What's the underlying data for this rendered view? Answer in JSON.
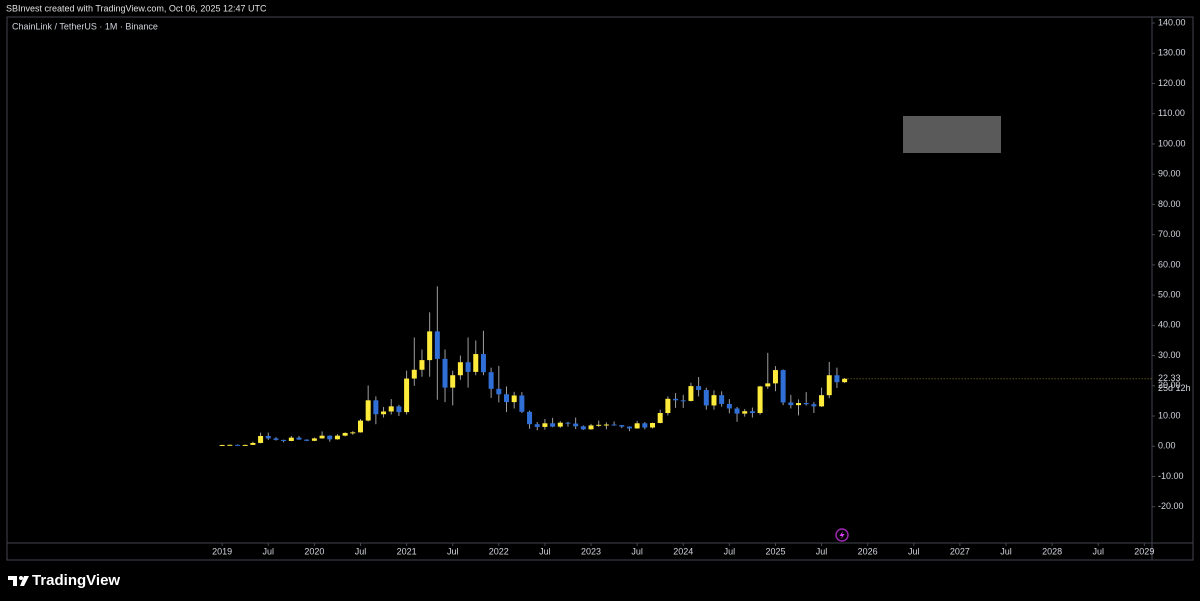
{
  "header": "SBInvest created with TradingView.com, Oct 06, 2025 12:47 UTC",
  "footer": "TradingView",
  "chart_data": {
    "type": "candlestick",
    "title": "ChainLink / TetherUS · 1M · Binance",
    "x": [
      "2019-01",
      "2019-02",
      "2019-03",
      "2019-04",
      "2019-05",
      "2019-06",
      "2019-07",
      "2019-08",
      "2019-09",
      "2019-10",
      "2019-11",
      "2019-12",
      "2020-01",
      "2020-02",
      "2020-03",
      "2020-04",
      "2020-05",
      "2020-06",
      "2020-07",
      "2020-08",
      "2020-09",
      "2020-10",
      "2020-11",
      "2020-12",
      "2021-01",
      "2021-02",
      "2021-03",
      "2021-04",
      "2021-05",
      "2021-06",
      "2021-07",
      "2021-08",
      "2021-09",
      "2021-10",
      "2021-11",
      "2021-12",
      "2022-01",
      "2022-02",
      "2022-03",
      "2022-04",
      "2022-05",
      "2022-06",
      "2022-07",
      "2022-08",
      "2022-09",
      "2022-10",
      "2022-11",
      "2022-12",
      "2023-01",
      "2023-02",
      "2023-03",
      "2023-04",
      "2023-05",
      "2023-06",
      "2023-07",
      "2023-08",
      "2023-09",
      "2023-10",
      "2023-11",
      "2023-12",
      "2024-01",
      "2024-02",
      "2024-03",
      "2024-04",
      "2024-05",
      "2024-06",
      "2024-07",
      "2024-08",
      "2024-09",
      "2024-10",
      "2024-11",
      "2024-12",
      "2025-01",
      "2025-02",
      "2025-03",
      "2025-04",
      "2025-05",
      "2025-06",
      "2025-07",
      "2025-08",
      "2025-09",
      "2025-10"
    ],
    "open": [
      0.3,
      0.43,
      0.48,
      0.45,
      0.45,
      1.1,
      3.4,
      2.6,
      2.1,
      1.75,
      2.85,
      2.2,
      1.8,
      2.6,
      3.5,
      2.3,
      3.5,
      4.4,
      4.6,
      8.5,
      15.2,
      10.6,
      11.5,
      13.2,
      11.3,
      22.4,
      25.3,
      28.5,
      38.0,
      28.9,
      19.4,
      23.5,
      27.8,
      24.6,
      30.5,
      24.5,
      19.0,
      17.2,
      14.6,
      16.8,
      11.4,
      7.3,
      6.4,
      7.6,
      6.5,
      7.8,
      7.5,
      6.6,
      5.6,
      6.9,
      7.1,
      7.2,
      7.0,
      6.5,
      5.9,
      7.6,
      6.2,
      7.7,
      11.0,
      15.7,
      15.2,
      15.0,
      19.9,
      18.6,
      13.5,
      16.9,
      14.0,
      12.5,
      10.8,
      11.6,
      11.0,
      19.8,
      20.8,
      25.2,
      14.5,
      13.6,
      14.3,
      13.9,
      13.2,
      16.9,
      23.5,
      21.2
    ],
    "high": [
      0.5,
      0.55,
      0.6,
      0.55,
      1.5,
      4.5,
      4.5,
      3.0,
      2.2,
      3.4,
      3.4,
      2.3,
      2.9,
      4.9,
      3.6,
      4.0,
      4.6,
      5.0,
      9.0,
      20.1,
      16.5,
      13.0,
      15.6,
      13.7,
      25.0,
      36.0,
      32.0,
      44.3,
      52.9,
      32.0,
      25.0,
      30.0,
      36.0,
      35.0,
      38.2,
      26.0,
      26.6,
      19.8,
      18.0,
      17.9,
      11.8,
      8.0,
      9.0,
      9.4,
      8.3,
      8.1,
      9.5,
      6.9,
      7.4,
      8.5,
      7.9,
      8.2,
      7.0,
      6.6,
      8.4,
      8.0,
      7.8,
      12.1,
      16.5,
      17.6,
      17.0,
      21.0,
      22.9,
      19.4,
      18.5,
      18.2,
      15.6,
      13.0,
      12.3,
      12.8,
      20.0,
      30.9,
      26.5,
      25.4,
      17.0,
      15.5,
      17.9,
      14.6,
      19.4,
      27.9,
      26.0,
      22.6
    ],
    "low": [
      0.28,
      0.4,
      0.42,
      0.38,
      0.42,
      1.0,
      2.1,
      1.9,
      1.3,
      1.7,
      2.1,
      1.7,
      1.7,
      2.5,
      1.5,
      2.2,
      3.3,
      3.8,
      4.5,
      8.2,
      7.3,
      9.5,
      10.5,
      10.0,
      10.5,
      20.0,
      23.0,
      23.0,
      15.4,
      14.6,
      13.5,
      22.0,
      19.4,
      23.5,
      23.5,
      16.0,
      14.5,
      11.3,
      12.5,
      11.0,
      5.8,
      5.3,
      5.5,
      6.3,
      6.1,
      6.5,
      5.7,
      5.4,
      5.5,
      6.4,
      5.6,
      6.8,
      6.0,
      5.0,
      5.8,
      5.6,
      5.9,
      7.6,
      10.2,
      12.7,
      12.7,
      14.8,
      16.5,
      12.1,
      12.1,
      13.1,
      10.9,
      8.1,
      9.8,
      9.5,
      10.5,
      19.0,
      18.2,
      13.6,
      12.5,
      10.2,
      13.5,
      11.0,
      13.0,
      15.9,
      19.3,
      20.9
    ],
    "close": [
      0.43,
      0.48,
      0.45,
      0.45,
      1.1,
      3.4,
      2.6,
      2.1,
      1.75,
      2.85,
      2.2,
      1.8,
      2.6,
      3.5,
      2.3,
      3.5,
      4.4,
      4.6,
      8.5,
      15.2,
      10.6,
      11.5,
      13.2,
      11.3,
      22.4,
      25.3,
      28.5,
      38.0,
      28.9,
      19.4,
      23.5,
      27.8,
      24.6,
      30.5,
      24.5,
      19.0,
      17.2,
      14.6,
      16.8,
      11.4,
      7.3,
      6.4,
      7.6,
      6.5,
      7.8,
      7.5,
      6.6,
      5.6,
      6.9,
      7.1,
      7.2,
      7.0,
      6.5,
      5.9,
      7.6,
      6.2,
      7.7,
      11.0,
      15.7,
      15.2,
      15.0,
      19.9,
      18.6,
      13.5,
      16.9,
      14.0,
      12.5,
      10.8,
      11.6,
      11.0,
      19.8,
      20.8,
      25.2,
      14.5,
      13.6,
      14.3,
      13.9,
      13.2,
      16.9,
      23.5,
      21.2,
      22.33
    ],
    "up_color": "#ffeb3b",
    "down_color": "#2f6fd6",
    "wick_color": "#9e9e9e",
    "countdown": "25d 12h",
    "xlim": [
      "2016-09",
      "2029-02"
    ],
    "xticks": [
      {
        "value": "2019-01",
        "label": "2019"
      },
      {
        "value": "2019-07",
        "label": "Jul"
      },
      {
        "value": "2020-01",
        "label": "2020"
      },
      {
        "value": "2020-07",
        "label": "Jul"
      },
      {
        "value": "2021-01",
        "label": "2021"
      },
      {
        "value": "2021-07",
        "label": "Jul"
      },
      {
        "value": "2022-01",
        "label": "2022"
      },
      {
        "value": "2022-07",
        "label": "Jul"
      },
      {
        "value": "2023-01",
        "label": "2023"
      },
      {
        "value": "2023-07",
        "label": "Jul"
      },
      {
        "value": "2024-01",
        "label": "2024"
      },
      {
        "value": "2024-07",
        "label": "Jul"
      },
      {
        "value": "2025-01",
        "label": "2025"
      },
      {
        "value": "2025-07",
        "label": "Jul"
      },
      {
        "value": "2026-01",
        "label": "2026"
      },
      {
        "value": "2026-07",
        "label": "Jul"
      },
      {
        "value": "2027-01",
        "label": "2027"
      },
      {
        "value": "2027-07",
        "label": "Jul"
      },
      {
        "value": "2028-01",
        "label": "2028"
      },
      {
        "value": "2028-07",
        "label": "Jul"
      },
      {
        "value": "2029-01",
        "label": "2029"
      }
    ],
    "ylim": [
      -32,
      142
    ],
    "yticks": [
      {
        "value": 140,
        "label": "140.00"
      },
      {
        "value": 130,
        "label": "130.00"
      },
      {
        "value": 120,
        "label": "120.00"
      },
      {
        "value": 110,
        "label": "110.00"
      },
      {
        "value": 100,
        "label": "100.00"
      },
      {
        "value": 90,
        "label": "90.00"
      },
      {
        "value": 80,
        "label": "80.00"
      },
      {
        "value": 70,
        "label": "70.00"
      },
      {
        "value": 60,
        "label": "60.00"
      },
      {
        "value": 50,
        "label": "50.00"
      },
      {
        "value": 40,
        "label": "40.00"
      },
      {
        "value": 30,
        "label": "30.00"
      },
      {
        "value": 20,
        "label": "20.00"
      },
      {
        "value": 10,
        "label": "10.00"
      },
      {
        "value": 0,
        "label": "0.00"
      },
      {
        "value": -10,
        "label": "-10.00"
      },
      {
        "value": -20,
        "label": "-20.00"
      }
    ],
    "grid": false
  }
}
